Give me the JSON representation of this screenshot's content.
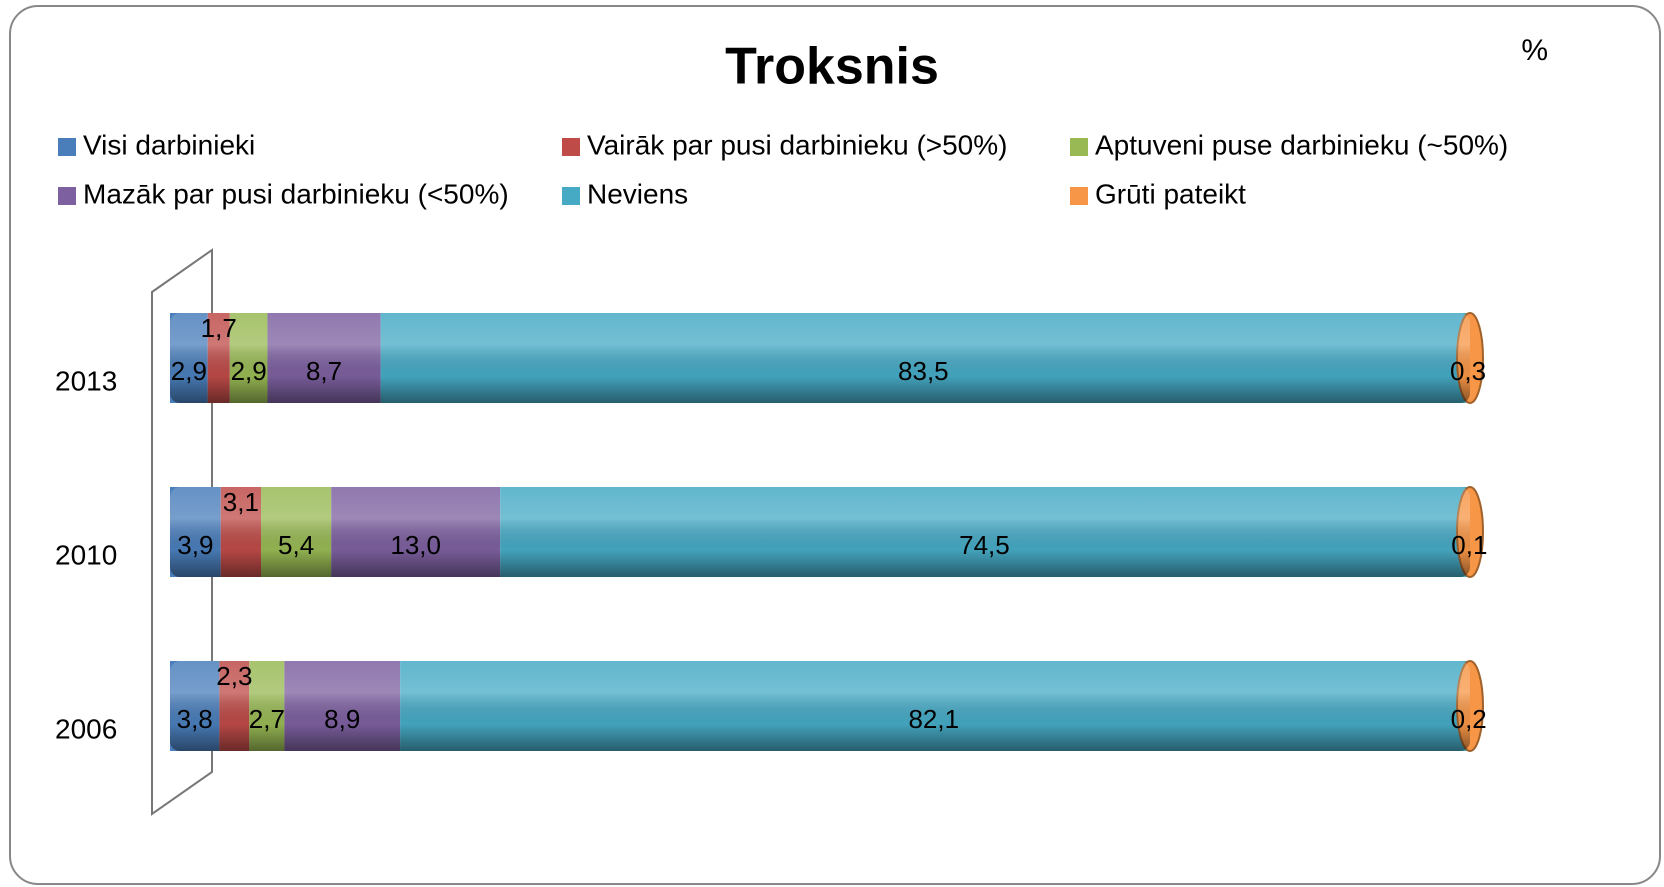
{
  "chart_data": {
    "type": "stacked-bar-horizontal",
    "title": "Troksnis",
    "unit": "%",
    "categories": [
      "2013",
      "2010",
      "2006"
    ],
    "xlim": [
      0,
      100
    ],
    "series": [
      {
        "name": "Visi darbinieki",
        "color": "#4a7ebb",
        "values": [
          2.9,
          3.9,
          3.8
        ],
        "value_labels": [
          "2,9",
          "3,9",
          "3,8"
        ]
      },
      {
        "name": "Vairāk par pusi darbinieku (>50%)",
        "color": "#be4b48",
        "values": [
          1.7,
          3.1,
          2.3
        ],
        "value_labels": [
          "1,7",
          "3,1",
          "2,3"
        ]
      },
      {
        "name": "Aptuveni puse darbinieku (~50%)",
        "color": "#98b954",
        "values": [
          2.9,
          5.4,
          2.7
        ],
        "value_labels": [
          "2,9",
          "5,4",
          "2,7"
        ]
      },
      {
        "name": "Mazāk par pusi darbinieku (<50%)",
        "color": "#7d60a0",
        "values": [
          8.7,
          13.0,
          8.9
        ],
        "value_labels": [
          "8,7",
          "13,0",
          "8,9"
        ]
      },
      {
        "name": "Neviens",
        "color": "#46aac5",
        "values": [
          83.5,
          74.5,
          82.1
        ],
        "value_labels": [
          "83,5",
          "74,5",
          "82,1"
        ]
      },
      {
        "name": "Grūti pateikt",
        "color": "#f79646",
        "values": [
          0.3,
          0.1,
          0.2
        ],
        "value_labels": [
          "0,3",
          "0,1",
          "0,2"
        ]
      }
    ],
    "legend": "top"
  }
}
